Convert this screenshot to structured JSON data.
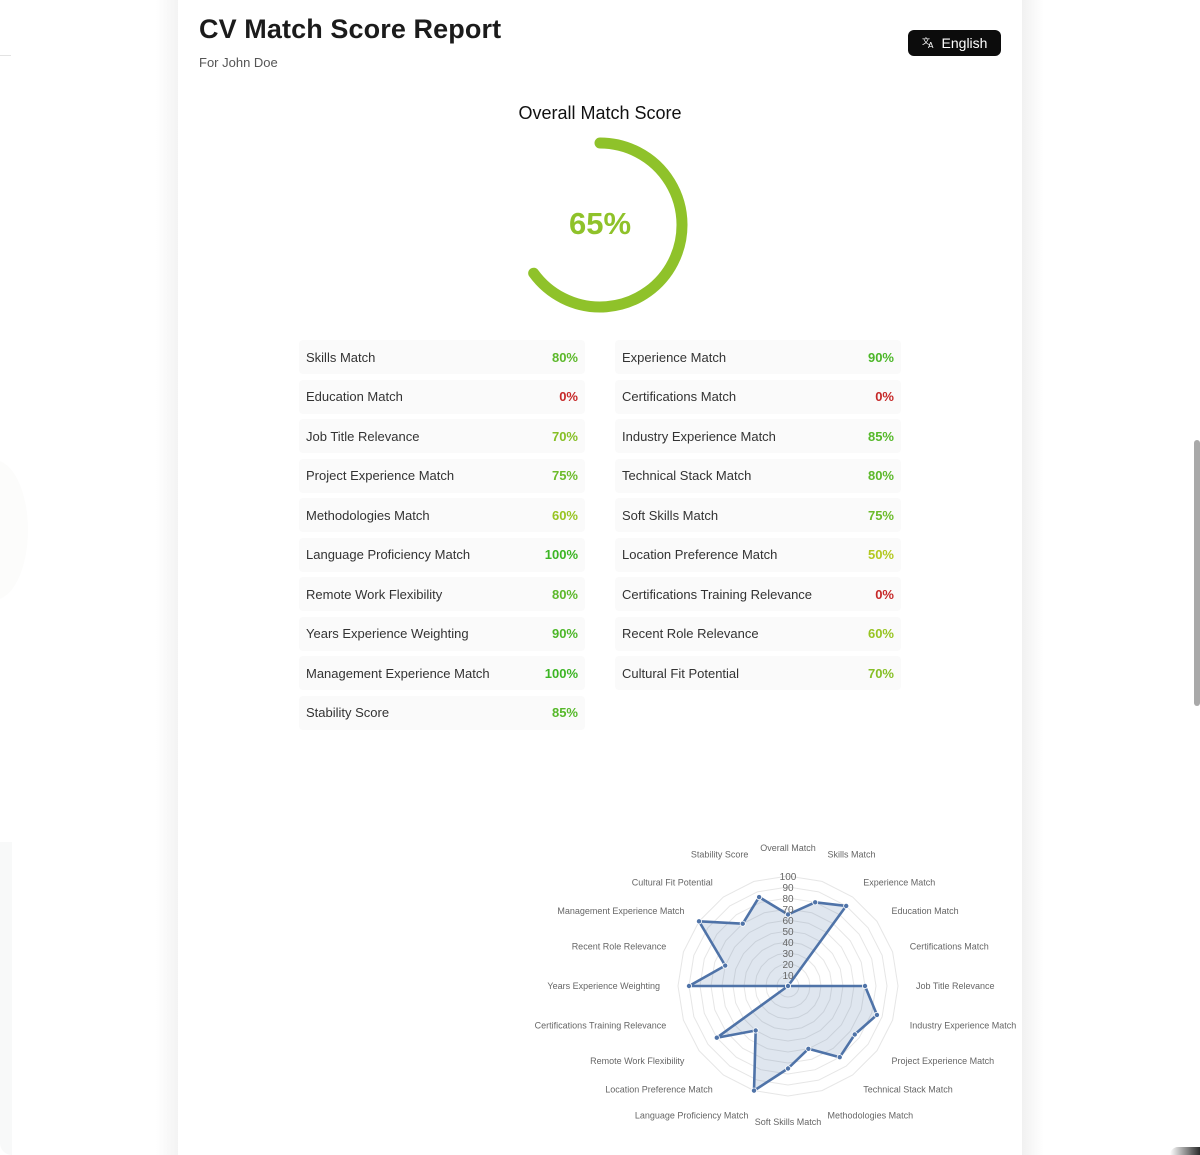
{
  "header": {
    "title": "CV Match Score Report",
    "subtitle": "For John Doe",
    "language_button": {
      "icon": "translate-icon",
      "label": "English"
    }
  },
  "overall": {
    "title": "Overall Match Score",
    "value": 65,
    "display": "65%",
    "color": "#8fc22a"
  },
  "scores": {
    "left": [
      {
        "label": "Skills Match",
        "value": "80%",
        "color": "#5cb82a"
      },
      {
        "label": "Education Match",
        "value": "0%",
        "color": "#c62828"
      },
      {
        "label": "Job Title Relevance",
        "value": "70%",
        "color": "#86bf25"
      },
      {
        "label": "Project Experience Match",
        "value": "75%",
        "color": "#6cbb2a"
      },
      {
        "label": "Methodologies Match",
        "value": "60%",
        "color": "#97c421"
      },
      {
        "label": "Language Proficiency Match",
        "value": "100%",
        "color": "#3cb524"
      },
      {
        "label": "Remote Work Flexibility",
        "value": "80%",
        "color": "#5cb82a"
      },
      {
        "label": "Years Experience Weighting",
        "value": "90%",
        "color": "#4cb728"
      },
      {
        "label": "Management Experience Match",
        "value": "100%",
        "color": "#3cb524"
      },
      {
        "label": "Stability Score",
        "value": "85%",
        "color": "#55b829"
      }
    ],
    "right": [
      {
        "label": "Experience Match",
        "value": "90%",
        "color": "#4cb728"
      },
      {
        "label": "Certifications Match",
        "value": "0%",
        "color": "#c62828"
      },
      {
        "label": "Industry Experience Match",
        "value": "85%",
        "color": "#55b829"
      },
      {
        "label": "Technical Stack Match",
        "value": "80%",
        "color": "#5cb82a"
      },
      {
        "label": "Soft Skills Match",
        "value": "75%",
        "color": "#6cbb2a"
      },
      {
        "label": "Location Preference Match",
        "value": "50%",
        "color": "#b3c81f"
      },
      {
        "label": "Certifications Training Relevance",
        "value": "0%",
        "color": "#c62828"
      },
      {
        "label": "Recent Role Relevance",
        "value": "60%",
        "color": "#97c421"
      },
      {
        "label": "Cultural Fit Potential",
        "value": "70%",
        "color": "#86bf25"
      }
    ]
  },
  "chart_data": {
    "type": "radar",
    "title": "",
    "categories": [
      "Overall Match",
      "Skills Match",
      "Experience Match",
      "Education Match",
      "Certifications Match",
      "Job Title Relevance",
      "Industry Experience Match",
      "Project Experience Match",
      "Technical Stack Match",
      "Methodologies Match",
      "Soft Skills Match",
      "Language Proficiency Match",
      "Location Preference Match",
      "Remote Work Flexibility",
      "Certifications Training Relevance",
      "Years Experience Weighting",
      "Recent Role Relevance",
      "Management Experience Match",
      "Cultural Fit Potential",
      "Stability Score"
    ],
    "series": [
      {
        "name": "Match Score",
        "values": [
          65,
          80,
          90,
          0,
          0,
          70,
          85,
          75,
          80,
          60,
          75,
          100,
          50,
          80,
          0,
          90,
          60,
          100,
          70,
          85
        ],
        "color": "#4f73a8",
        "fill": "rgba(79,115,168,0.18)"
      }
    ],
    "r_ticks": [
      "10",
      "20",
      "30",
      "40",
      "50",
      "60",
      "70",
      "80",
      "90",
      "100"
    ],
    "rlim": [
      0,
      100
    ],
    "grid": true,
    "legend": "none"
  }
}
